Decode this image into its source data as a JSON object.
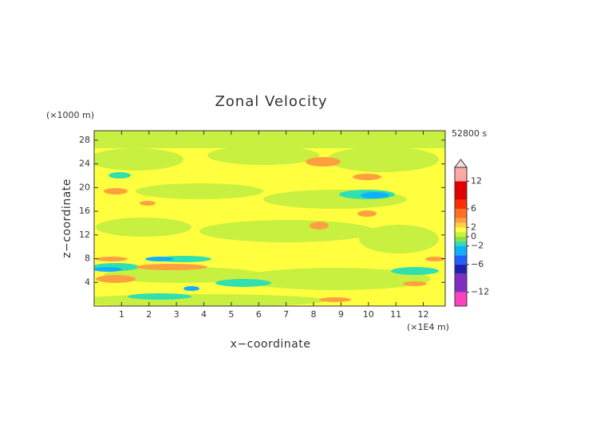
{
  "chart_data": {
    "type": "contour",
    "title": "Zonal Velocity",
    "x_label": "x−coordinate",
    "y_label": "z−coordinate",
    "x_unit": "(×1E4 m)",
    "y_unit": "(×1000 m)",
    "time_label": "52800 s",
    "xlim": [
      0,
      12.8
    ],
    "ylim": [
      0,
      29.6
    ],
    "xticks": [
      1,
      2,
      3,
      4,
      5,
      6,
      7,
      8,
      9,
      10,
      11,
      12
    ],
    "yticks": [
      4,
      8,
      12,
      16,
      20,
      24,
      28
    ],
    "colorbar": {
      "lim": [
        -15,
        15
      ],
      "levels": [
        -15,
        -12,
        -8,
        -6,
        -4,
        -2,
        -1,
        0,
        1,
        2,
        3,
        4,
        6,
        8,
        12,
        15
      ],
      "colors": [
        "#ff40c0",
        "#8030c0",
        "#2020b0",
        "#2060ff",
        "#10b0ff",
        "#30e0b0",
        "#90e040",
        "#c8f040",
        "#ffff40",
        "#ffd040",
        "#ffa040",
        "#ff7020",
        "#ff3000",
        "#e00000",
        "#ffa8a8"
      ],
      "ticks": [
        12,
        6,
        2,
        0,
        {
          "value": -2,
          "label": "−2"
        },
        {
          "value": -6,
          "label": "−6"
        },
        {
          "value": -12,
          "label": "−12"
        }
      ]
    }
  }
}
